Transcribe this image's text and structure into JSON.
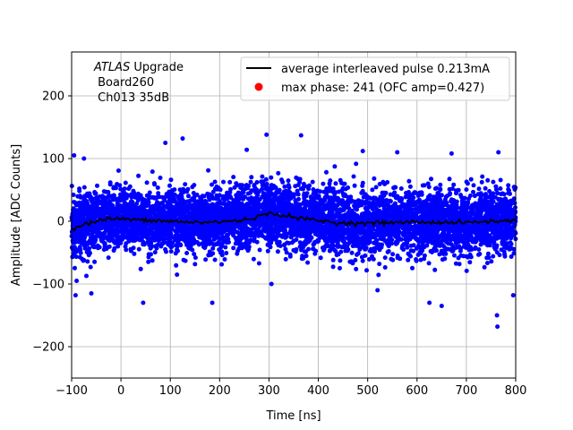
{
  "chart_data": {
    "type": "scatter",
    "title": "",
    "xlabel": "Time [ns]",
    "ylabel": "Amplitude [ADC Counts]",
    "xlim": [
      -100,
      800
    ],
    "ylim": [
      -250,
      270
    ],
    "xticks": [
      -100,
      0,
      100,
      200,
      300,
      400,
      500,
      600,
      700,
      800
    ],
    "yticks": [
      -200,
      -100,
      0,
      100,
      200
    ],
    "grid": true,
    "annotation": {
      "line1_italic": "ATLAS",
      "line1_rest": " Upgrade",
      "line2": " Board260",
      "line3": " Ch013 35dB"
    },
    "legend": {
      "position": "top-right",
      "entries": [
        {
          "label": "average interleaved pulse 0.213mA",
          "marker": "line",
          "color": "#000000"
        },
        {
          "label": "max phase: 241 (OFC amp=0.427)",
          "marker": "dot",
          "color": "#ff0000"
        }
      ]
    },
    "series": [
      {
        "name": "samples",
        "kind": "scatter",
        "color": "#0000ff",
        "noise_sigma": 25,
        "sample_count": 6000,
        "outliers": [
          [
            -95,
            105
          ],
          [
            -75,
            100
          ],
          [
            90,
            125
          ],
          [
            125,
            132
          ],
          [
            295,
            138
          ],
          [
            365,
            137
          ],
          [
            255,
            114
          ],
          [
            490,
            112
          ],
          [
            560,
            110
          ],
          [
            670,
            108
          ],
          [
            765,
            110
          ],
          [
            -92,
            -118
          ],
          [
            45,
            -130
          ],
          [
            185,
            -130
          ],
          [
            762,
            -150
          ],
          [
            763,
            -168
          ],
          [
            795,
            -118
          ],
          [
            650,
            -135
          ],
          [
            625,
            -130
          ],
          [
            -60,
            -115
          ],
          [
            520,
            -110
          ],
          [
            305,
            -100
          ]
        ]
      },
      {
        "name": "average interleaved pulse 0.213mA",
        "kind": "line",
        "color": "#000000",
        "x": [
          -100,
          -80,
          -60,
          -40,
          -20,
          0,
          20,
          40,
          60,
          80,
          100,
          150,
          200,
          250,
          280,
          300,
          320,
          340,
          360,
          400,
          450,
          500,
          550,
          600,
          650,
          700,
          750,
          800
        ],
        "y": [
          -12,
          -6,
          -2,
          2,
          4,
          4,
          3,
          2,
          0,
          1,
          0,
          -2,
          -1,
          2,
          8,
          12,
          11,
          8,
          5,
          1,
          -3,
          -3,
          -2,
          -1,
          -2,
          -2,
          0,
          1
        ]
      }
    ]
  }
}
